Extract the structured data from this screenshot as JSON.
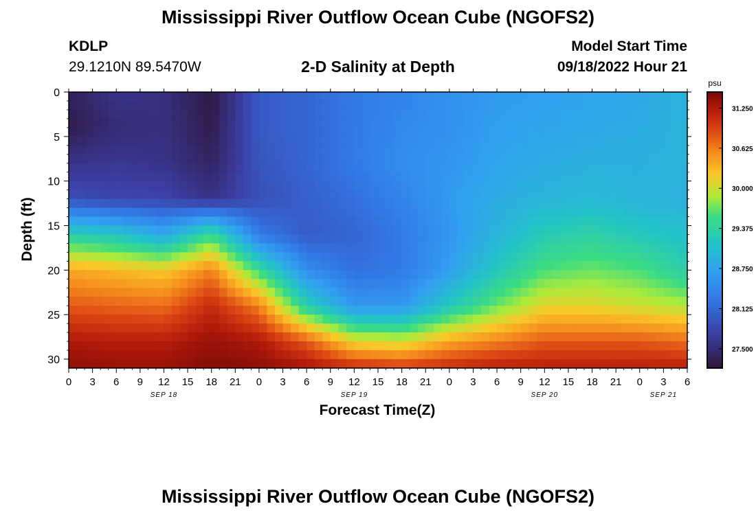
{
  "header": {
    "title": "Mississippi River Outflow Ocean Cube (NGOFS2)",
    "station_id": "KDLP",
    "station_coords": "29.1210N  89.5470W",
    "subtitle": "2-D Salinity at Depth",
    "start_label": "Model Start Time",
    "start_value": "09/18/2022 Hour 21"
  },
  "footer": {
    "title": "Mississippi River Outflow Ocean Cube (NGOFS2)"
  },
  "chart_data": {
    "type": "heatmap",
    "title": "2-D Salinity at Depth",
    "xlabel": "Forecast Time(Z)",
    "ylabel": "Depth (ft)",
    "x_ticks": [
      "0",
      "3",
      "6",
      "9",
      "12",
      "15",
      "18",
      "21",
      "0",
      "3",
      "6",
      "9",
      "12",
      "15",
      "18",
      "21",
      "0",
      "3",
      "6",
      "9",
      "12",
      "15",
      "18",
      "21",
      "0",
      "3",
      "6"
    ],
    "day_labels": [
      {
        "label": "SEP 18",
        "hour": 12
      },
      {
        "label": "SEP 19",
        "hour": 36
      },
      {
        "label": "SEP 20",
        "hour": 60
      },
      {
        "label": "SEP 21",
        "hour": 75
      }
    ],
    "xlim": [
      0,
      78
    ],
    "y_ticks": [
      0,
      5,
      10,
      15,
      20,
      25,
      30
    ],
    "ylim": [
      0,
      31
    ],
    "y_inverted": true,
    "colorbar": {
      "unit": "psu",
      "ticks": [
        "31.250",
        "30.625",
        "30.000",
        "29.375",
        "28.750",
        "28.125",
        "27.500"
      ],
      "min": 27.2,
      "max": 31.5
    },
    "grid_hours": [
      0,
      6,
      12,
      18,
      24,
      30,
      36,
      42,
      48,
      54,
      60,
      66,
      72,
      78
    ],
    "grid_depths": [
      0,
      4,
      8,
      12,
      16,
      20,
      24,
      28,
      31
    ],
    "z": [
      [
        27.35,
        27.6,
        27.55,
        27.25,
        28.0,
        28.1,
        28.3,
        28.4,
        28.55,
        28.65,
        28.7,
        28.75,
        28.8,
        28.95
      ],
      [
        27.3,
        27.5,
        27.55,
        27.3,
        28.0,
        28.1,
        28.3,
        28.45,
        28.55,
        28.7,
        28.75,
        28.8,
        28.85,
        28.95
      ],
      [
        27.6,
        27.65,
        27.6,
        27.4,
        27.95,
        28.1,
        28.3,
        28.5,
        28.6,
        28.75,
        28.85,
        28.9,
        28.9,
        28.95
      ],
      [
        27.9,
        27.8,
        27.8,
        27.6,
        27.9,
        28.05,
        28.2,
        28.4,
        28.65,
        28.85,
        28.95,
        29.0,
        28.95,
        28.9
      ],
      [
        29.3,
        29.15,
        28.8,
        29.5,
        28.3,
        28.0,
        28.1,
        28.3,
        28.6,
        28.95,
        29.25,
        29.35,
        29.2,
        29.1
      ],
      [
        30.4,
        30.3,
        30.2,
        30.6,
        29.5,
        28.5,
        28.2,
        28.3,
        28.7,
        29.2,
        29.6,
        29.7,
        29.6,
        29.3
      ],
      [
        30.8,
        30.75,
        30.7,
        31.1,
        30.6,
        29.3,
        28.6,
        28.6,
        29.2,
        29.7,
        30.1,
        30.1,
        30.0,
        29.9
      ],
      [
        31.25,
        31.2,
        31.2,
        31.35,
        31.25,
        30.8,
        30.1,
        30.0,
        30.4,
        30.6,
        30.8,
        30.8,
        30.8,
        30.7
      ],
      [
        31.4,
        31.35,
        31.35,
        31.45,
        31.4,
        31.3,
        31.1,
        31.0,
        31.1,
        31.2,
        31.2,
        31.2,
        31.2,
        31.2
      ]
    ]
  }
}
